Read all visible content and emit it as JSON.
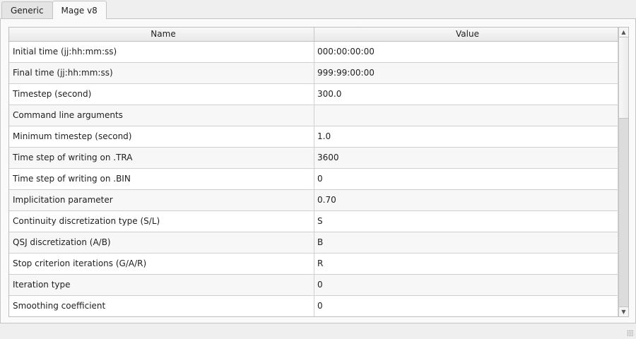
{
  "tabs": [
    {
      "label": "Generic"
    },
    {
      "label": "Mage v8",
      "active": true
    }
  ],
  "table": {
    "columns": [
      "Name",
      "Value"
    ],
    "rows": [
      [
        "Initial time (jj:hh:mm:ss)",
        "000:00:00:00"
      ],
      [
        "Final time (jj:hh:mm:ss)",
        "999:99:00:00"
      ],
      [
        "Timestep (second)",
        "300.0"
      ],
      [
        "Command line arguments",
        ""
      ],
      [
        "Minimum timestep (second)",
        "1.0"
      ],
      [
        "Time step of writing on .TRA",
        "3600"
      ],
      [
        "Time step of writing on .BIN",
        "0"
      ],
      [
        "Implicitation parameter",
        "0.70"
      ],
      [
        "Continuity discretization type (S/L)",
        "S"
      ],
      [
        "QSJ discretization (A/B)",
        "B"
      ],
      [
        "Stop criterion iterations (G/A/R)",
        "R"
      ],
      [
        "Iteration type",
        "0"
      ],
      [
        "Smoothing coefficient",
        "0"
      ]
    ]
  },
  "scrollbar": {
    "up_icon": "▲",
    "down_icon": "▼",
    "position_fraction": 0
  }
}
